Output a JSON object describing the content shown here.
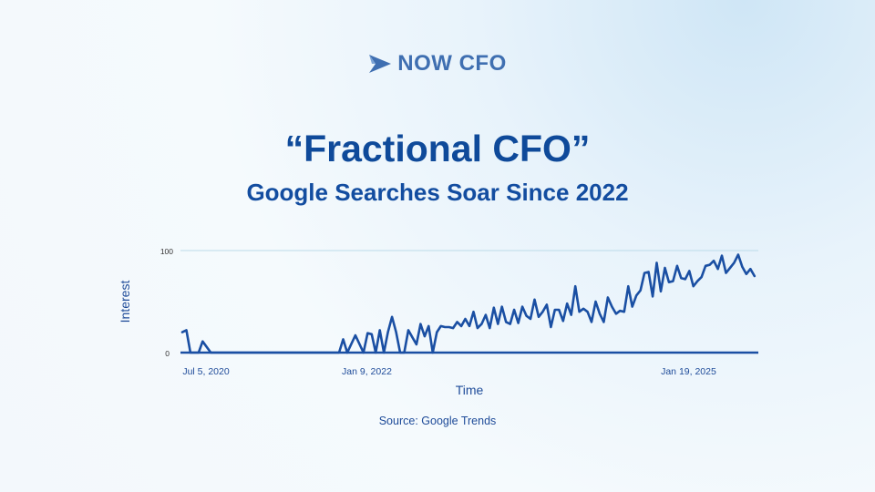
{
  "logo": {
    "text": "NOW CFO",
    "icon": "arrow-triangle-logo",
    "color": "#3f6fb1"
  },
  "title": "“Fractional CFO”",
  "subtitle": "Google Searches Soar Since 2022",
  "source": "Source: Google Trends",
  "colors": {
    "line": "#1a4fa3",
    "grid": "#bcdbe9",
    "text": "#1e4b99"
  },
  "chart_data": {
    "type": "line",
    "title": "",
    "xlabel": "Time",
    "ylabel": "Interest",
    "ylim": [
      0,
      100
    ],
    "yticks": [
      0,
      100
    ],
    "xlim": [
      "2020-07-05",
      "2025-11-30"
    ],
    "xtick_labels": [
      {
        "date": "2020-07-05",
        "label": "Jul 5, 2020"
      },
      {
        "date": "2022-01-09",
        "label": "Jan 9, 2022"
      },
      {
        "date": "2025-01-19",
        "label": "Jan 19, 2025"
      }
    ],
    "grid": "horizontal line at 100",
    "series": [
      {
        "x": [
          "2020-07-05",
          "2020-07-19",
          "2020-08-02",
          "2020-08-16",
          "2020-08-30",
          "2020-09-13",
          "2020-10-11",
          "2020-11-22",
          "2021-01-03",
          "2021-03-07",
          "2021-05-09",
          "2021-07-11",
          "2021-09-12",
          "2021-11-14",
          "2021-12-26",
          "2022-01-09",
          "2022-01-23",
          "2022-02-20",
          "2022-03-20",
          "2022-04-03",
          "2022-04-17",
          "2022-05-01",
          "2022-05-15",
          "2022-05-29",
          "2022-06-12",
          "2022-06-26",
          "2022-07-10",
          "2022-07-24",
          "2022-08-07",
          "2022-08-21",
          "2022-09-04",
          "2022-09-18",
          "2022-10-02",
          "2022-10-16",
          "2022-10-30",
          "2022-11-13",
          "2022-11-27",
          "2022-12-11",
          "2022-12-25",
          "2023-01-08",
          "2023-01-22",
          "2023-02-05",
          "2023-02-19",
          "2023-03-05",
          "2023-03-19",
          "2023-04-02",
          "2023-04-16",
          "2023-04-30",
          "2023-05-14",
          "2023-05-28",
          "2023-06-11",
          "2023-06-25",
          "2023-07-09",
          "2023-07-23",
          "2023-08-06",
          "2023-08-20",
          "2023-09-03",
          "2023-09-17",
          "2023-10-01",
          "2023-10-15",
          "2023-10-29",
          "2023-11-12",
          "2023-11-26",
          "2023-12-10",
          "2023-12-24",
          "2024-01-07",
          "2024-01-21",
          "2024-02-04",
          "2024-02-18",
          "2024-03-03",
          "2024-03-17",
          "2024-03-31",
          "2024-04-14",
          "2024-04-28",
          "2024-05-12",
          "2024-05-26",
          "2024-06-09",
          "2024-06-23",
          "2024-07-07",
          "2024-07-21",
          "2024-08-04",
          "2024-08-18",
          "2024-09-01",
          "2024-09-15",
          "2024-09-29",
          "2024-10-13",
          "2024-10-27",
          "2024-11-10",
          "2024-11-24",
          "2024-12-08",
          "2024-12-22",
          "2025-01-05",
          "2025-01-19",
          "2025-02-02",
          "2025-02-16",
          "2025-03-02",
          "2025-03-16",
          "2025-03-30",
          "2025-04-13",
          "2025-04-27",
          "2025-05-11",
          "2025-05-25",
          "2025-06-08",
          "2025-06-22",
          "2025-07-06",
          "2025-07-20",
          "2025-08-03",
          "2025-08-17",
          "2025-08-31",
          "2025-09-14",
          "2025-09-28",
          "2025-10-12",
          "2025-10-26",
          "2025-11-09",
          "2025-11-23"
        ],
        "y": [
          20,
          22,
          0,
          0,
          0,
          11,
          0,
          0,
          0,
          0,
          0,
          0,
          0,
          0,
          0,
          13,
          0,
          17,
          0,
          19,
          18,
          0,
          22,
          0,
          20,
          35,
          20,
          0,
          0,
          22,
          15,
          8,
          28,
          16,
          26,
          0,
          20,
          26,
          25,
          25,
          24,
          30,
          26,
          33,
          26,
          40,
          24,
          28,
          37,
          24,
          44,
          28,
          45,
          30,
          28,
          42,
          29,
          45,
          36,
          33,
          52,
          35,
          40,
          47,
          25,
          42,
          42,
          31,
          48,
          37,
          65,
          40,
          43,
          40,
          30,
          50,
          38,
          30,
          54,
          45,
          38,
          41,
          40,
          65,
          45,
          56,
          61,
          78,
          79,
          55,
          88,
          60,
          83,
          69,
          70,
          85,
          73,
          72,
          80,
          65,
          70,
          74,
          85,
          86,
          90,
          82,
          95,
          78,
          83,
          88,
          96,
          84,
          77,
          82,
          75
        ]
      }
    ]
  }
}
